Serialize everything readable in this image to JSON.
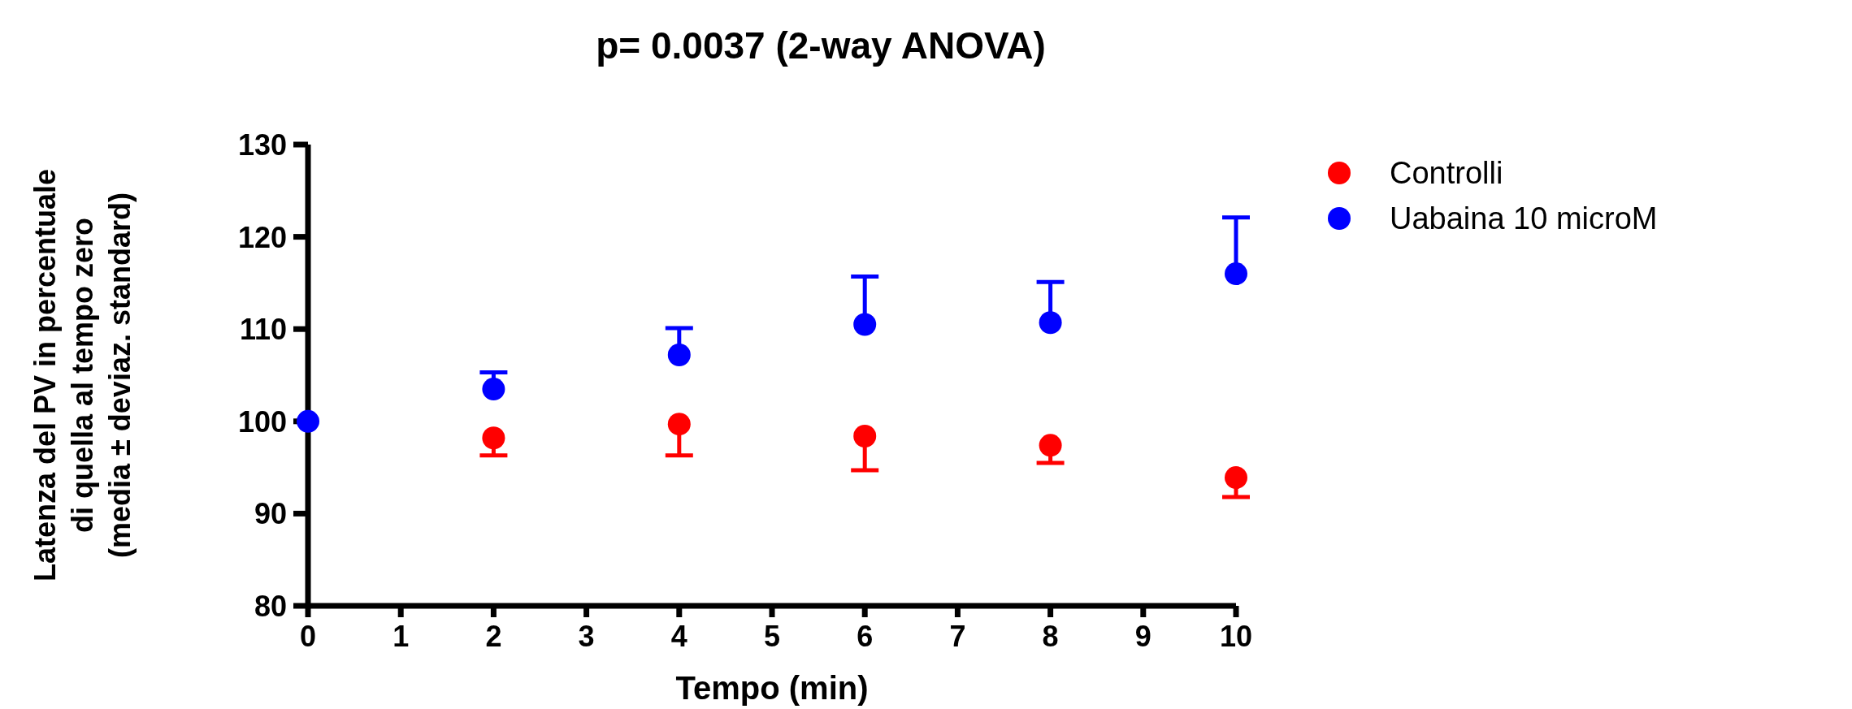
{
  "chart_data": {
    "type": "scatter",
    "title": "p=  0.0037 (2-way ANOVA)",
    "xlabel": "Tempo (min)",
    "ylabel": "Latenza del PV in percentuale\ndi quella al tempo zero\n(media ± deviaz. standard)",
    "x": [
      0,
      2,
      4,
      6,
      8,
      10
    ],
    "series": [
      {
        "name": "Controlli",
        "color": "#ff0000",
        "values": [
          null,
          98.2,
          99.7,
          98.4,
          97.4,
          93.9
        ],
        "errors": [
          null,
          [
            96.3,
            98.2
          ],
          [
            96.3,
            99.7
          ],
          [
            94.7,
            98.4
          ],
          [
            95.5,
            97.4
          ],
          [
            91.8,
            93.9
          ]
        ]
      },
      {
        "name": "Uabaina 10 microM",
        "color": "#0000ff",
        "values": [
          100,
          103.5,
          107.2,
          110.5,
          110.7,
          116
        ],
        "errors": [
          null,
          [
            103.5,
            105.3
          ],
          [
            107.2,
            110.1
          ],
          [
            110.5,
            115.7
          ],
          [
            110.7,
            115.1
          ],
          [
            116,
            122.1
          ]
        ]
      }
    ],
    "xlim": [
      0,
      10
    ],
    "xticks": [
      0,
      1,
      2,
      3,
      4,
      5,
      6,
      7,
      8,
      9,
      10
    ],
    "ylim": [
      80,
      130
    ],
    "yticks": [
      80,
      90,
      100,
      110,
      120,
      130
    ],
    "marker": "circle",
    "legend": "top right",
    "grid": false
  }
}
